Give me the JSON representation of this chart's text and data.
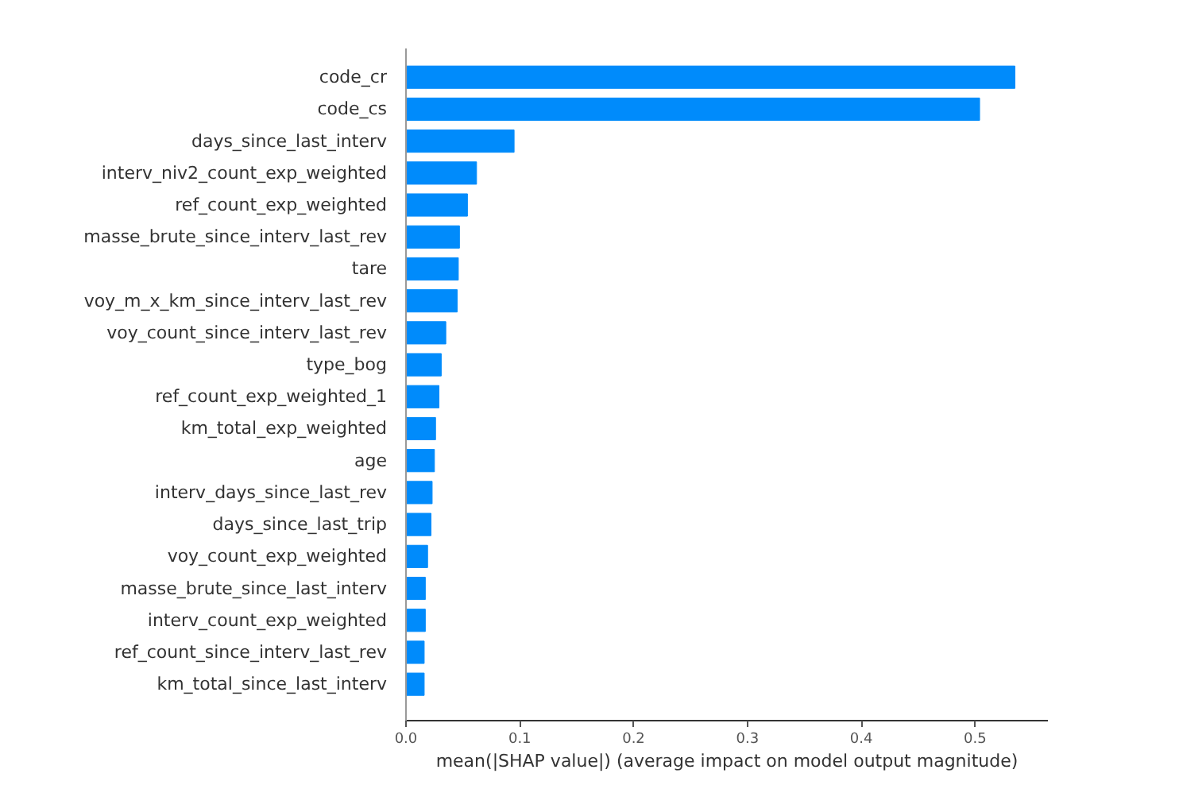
{
  "chart_data": {
    "type": "bar",
    "orientation": "horizontal",
    "xlabel": "mean(|SHAP value|) (average impact on model output magnitude)",
    "categories": [
      "code_cr",
      "code_cs",
      "days_since_last_interv",
      "interv_niv2_count_exp_weighted",
      "ref_count_exp_weighted",
      "masse_brute_since_interv_last_rev",
      "tare",
      "voy_m_x_km_since_interv_last_rev",
      "voy_count_since_interv_last_rev",
      "type_bog",
      "ref_count_exp_weighted_1",
      "km_total_exp_weighted",
      "age",
      "interv_days_since_last_rev",
      "days_since_last_trip",
      "voy_count_exp_weighted",
      "masse_brute_since_last_interv",
      "interv_count_exp_weighted",
      "ref_count_since_interv_last_rev",
      "km_total_since_last_interv"
    ],
    "values": [
      0.535,
      0.504,
      0.095,
      0.062,
      0.054,
      0.047,
      0.046,
      0.045,
      0.035,
      0.031,
      0.029,
      0.026,
      0.025,
      0.023,
      0.022,
      0.019,
      0.017,
      0.017,
      0.016,
      0.016
    ],
    "color": "#008bfb",
    "xlim": [
      0,
      0.564
    ],
    "xticks": [
      {
        "value": 0,
        "label": "0.0"
      },
      0.1,
      0.2,
      0.3,
      0.4,
      0.5
    ]
  }
}
